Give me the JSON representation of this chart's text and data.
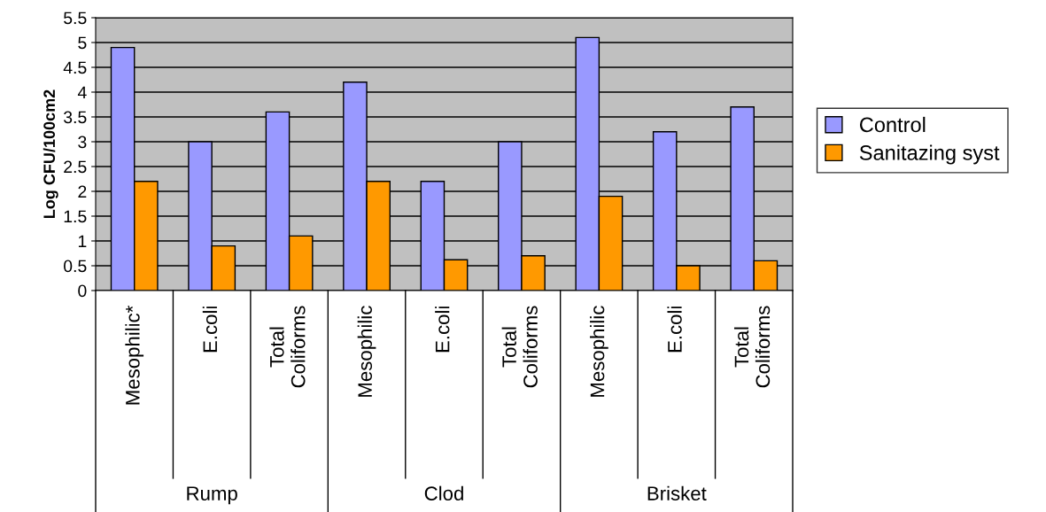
{
  "chart_data": {
    "type": "bar",
    "ylabel": "Log CFU/100cm2",
    "categories": [
      "Mesophilic*",
      "E.coli",
      "Total Coliforms",
      "Mesophilic",
      "E.coli",
      "Total Coliforms",
      "Mesophilic",
      "E.coli",
      "Total Coliforms"
    ],
    "series": [
      {
        "name": "Control",
        "color": "#9999ff",
        "values": [
          4.9,
          3.0,
          3.6,
          4.2,
          2.2,
          3.0,
          5.1,
          3.2,
          3.7
        ]
      },
      {
        "name": "Sanitazing syst",
        "color": "#ff9900",
        "values": [
          2.2,
          0.9,
          1.1,
          2.2,
          0.62,
          0.7,
          1.9,
          0.5,
          0.6
        ]
      }
    ],
    "annotations": [
      "Rump",
      "Clod",
      "Brisket"
    ],
    "ylim": [
      0,
      5.5
    ],
    "yticks": [
      0,
      0.5,
      1,
      1.5,
      2,
      2.5,
      3,
      3.5,
      4,
      4.5,
      5,
      5.5
    ],
    "grid": "y",
    "legend": "right"
  }
}
